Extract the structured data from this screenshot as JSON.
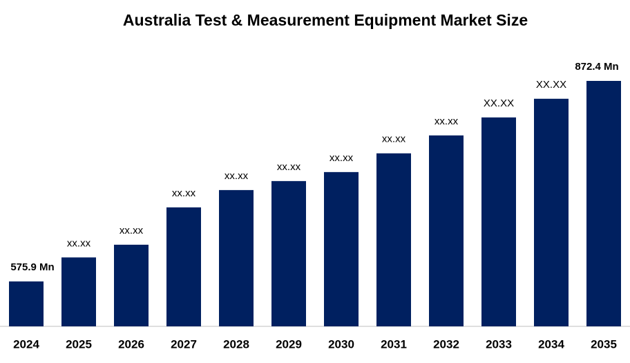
{
  "chart_data": {
    "type": "bar",
    "title": "Australia Test & Measurement Equipment Market Size",
    "categories": [
      "2024",
      "2025",
      "2026",
      "2027",
      "2028",
      "2029",
      "2030",
      "2031",
      "2032",
      "2033",
      "2034",
      "2035"
    ],
    "values": [
      575.9,
      611.4,
      630.2,
      685.4,
      711,
      724.3,
      737.6,
      765.3,
      791.8,
      818.4,
      846,
      872.4
    ],
    "value_labels": [
      "575.9 Mn",
      "xx.xx",
      "xx.xx",
      "xx.xx",
      "xx.xx",
      "xx.xx",
      "xx.xx",
      "xx.xx",
      "xx.xx",
      "XX.XX",
      "XX.XX",
      "872.4 Mn"
    ],
    "color": "#002060",
    "ylim": [
      509.5,
      900
    ]
  }
}
